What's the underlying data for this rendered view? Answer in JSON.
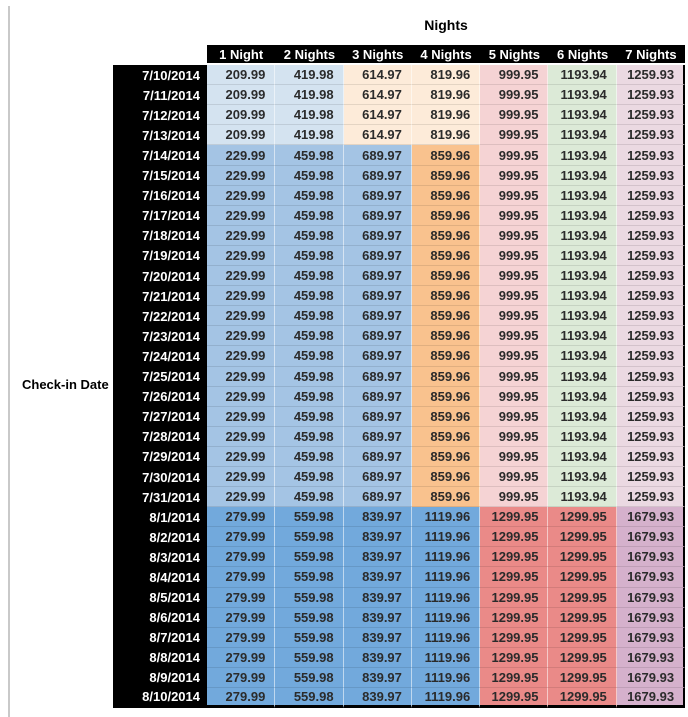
{
  "title": "Nights",
  "row_axis_label": "Check-in Date",
  "columns": [
    "1 Night",
    "2 Nights",
    "3 Nights",
    "4 Nights",
    "5 Nights",
    "6 Nights",
    "7 Nights"
  ],
  "colors": {
    "header_bg": "#000000",
    "header_text": "#ffffff",
    "value_text": "#2b2b2b",
    "left_rule": "#c9c9c9",
    "palettes": {
      "early_july": [
        "#d4e3f0",
        "#d4e3f0",
        "#fdebd9",
        "#fdebd9",
        "#f5d3d4",
        "#dcead7",
        "#ebd9e2"
      ],
      "late_july": [
        "#a4c4e4",
        "#a4c4e4",
        "#a4c4e4",
        "#f9c28e",
        "#f5d3d4",
        "#dcead7",
        "#ebd9e2"
      ],
      "august": [
        "#72a9dc",
        "#72a9dc",
        "#72a9dc",
        "#72a9dc",
        "#ea8a88",
        "#ea8a88",
        "#d5b1cc"
      ]
    }
  },
  "rows": [
    {
      "date": "7/10/2014",
      "palette": "early_july",
      "values": [
        "209.99",
        "419.98",
        "614.97",
        "819.96",
        "999.95",
        "1193.94",
        "1259.93"
      ]
    },
    {
      "date": "7/11/2014",
      "palette": "early_july",
      "values": [
        "209.99",
        "419.98",
        "614.97",
        "819.96",
        "999.95",
        "1193.94",
        "1259.93"
      ]
    },
    {
      "date": "7/12/2014",
      "palette": "early_july",
      "values": [
        "209.99",
        "419.98",
        "614.97",
        "819.96",
        "999.95",
        "1193.94",
        "1259.93"
      ]
    },
    {
      "date": "7/13/2014",
      "palette": "early_july",
      "values": [
        "209.99",
        "419.98",
        "614.97",
        "819.96",
        "999.95",
        "1193.94",
        "1259.93"
      ]
    },
    {
      "date": "7/14/2014",
      "palette": "late_july",
      "values": [
        "229.99",
        "459.98",
        "689.97",
        "859.96",
        "999.95",
        "1193.94",
        "1259.93"
      ]
    },
    {
      "date": "7/15/2014",
      "palette": "late_july",
      "values": [
        "229.99",
        "459.98",
        "689.97",
        "859.96",
        "999.95",
        "1193.94",
        "1259.93"
      ]
    },
    {
      "date": "7/16/2014",
      "palette": "late_july",
      "values": [
        "229.99",
        "459.98",
        "689.97",
        "859.96",
        "999.95",
        "1193.94",
        "1259.93"
      ]
    },
    {
      "date": "7/17/2014",
      "palette": "late_july",
      "values": [
        "229.99",
        "459.98",
        "689.97",
        "859.96",
        "999.95",
        "1193.94",
        "1259.93"
      ]
    },
    {
      "date": "7/18/2014",
      "palette": "late_july",
      "values": [
        "229.99",
        "459.98",
        "689.97",
        "859.96",
        "999.95",
        "1193.94",
        "1259.93"
      ]
    },
    {
      "date": "7/19/2014",
      "palette": "late_july",
      "values": [
        "229.99",
        "459.98",
        "689.97",
        "859.96",
        "999.95",
        "1193.94",
        "1259.93"
      ]
    },
    {
      "date": "7/20/2014",
      "palette": "late_july",
      "values": [
        "229.99",
        "459.98",
        "689.97",
        "859.96",
        "999.95",
        "1193.94",
        "1259.93"
      ]
    },
    {
      "date": "7/21/2014",
      "palette": "late_july",
      "values": [
        "229.99",
        "459.98",
        "689.97",
        "859.96",
        "999.95",
        "1193.94",
        "1259.93"
      ]
    },
    {
      "date": "7/22/2014",
      "palette": "late_july",
      "values": [
        "229.99",
        "459.98",
        "689.97",
        "859.96",
        "999.95",
        "1193.94",
        "1259.93"
      ]
    },
    {
      "date": "7/23/2014",
      "palette": "late_july",
      "values": [
        "229.99",
        "459.98",
        "689.97",
        "859.96",
        "999.95",
        "1193.94",
        "1259.93"
      ]
    },
    {
      "date": "7/24/2014",
      "palette": "late_july",
      "values": [
        "229.99",
        "459.98",
        "689.97",
        "859.96",
        "999.95",
        "1193.94",
        "1259.93"
      ]
    },
    {
      "date": "7/25/2014",
      "palette": "late_july",
      "values": [
        "229.99",
        "459.98",
        "689.97",
        "859.96",
        "999.95",
        "1193.94",
        "1259.93"
      ]
    },
    {
      "date": "7/26/2014",
      "palette": "late_july",
      "values": [
        "229.99",
        "459.98",
        "689.97",
        "859.96",
        "999.95",
        "1193.94",
        "1259.93"
      ]
    },
    {
      "date": "7/27/2014",
      "palette": "late_july",
      "values": [
        "229.99",
        "459.98",
        "689.97",
        "859.96",
        "999.95",
        "1193.94",
        "1259.93"
      ]
    },
    {
      "date": "7/28/2014",
      "palette": "late_july",
      "values": [
        "229.99",
        "459.98",
        "689.97",
        "859.96",
        "999.95",
        "1193.94",
        "1259.93"
      ]
    },
    {
      "date": "7/29/2014",
      "palette": "late_july",
      "values": [
        "229.99",
        "459.98",
        "689.97",
        "859.96",
        "999.95",
        "1193.94",
        "1259.93"
      ]
    },
    {
      "date": "7/30/2014",
      "palette": "late_july",
      "values": [
        "229.99",
        "459.98",
        "689.97",
        "859.96",
        "999.95",
        "1193.94",
        "1259.93"
      ]
    },
    {
      "date": "7/31/2014",
      "palette": "late_july",
      "values": [
        "229.99",
        "459.98",
        "689.97",
        "859.96",
        "999.95",
        "1193.94",
        "1259.93"
      ]
    },
    {
      "date": "8/1/2014",
      "palette": "august",
      "values": [
        "279.99",
        "559.98",
        "839.97",
        "1119.96",
        "1299.95",
        "1299.95",
        "1679.93"
      ]
    },
    {
      "date": "8/2/2014",
      "palette": "august",
      "values": [
        "279.99",
        "559.98",
        "839.97",
        "1119.96",
        "1299.95",
        "1299.95",
        "1679.93"
      ]
    },
    {
      "date": "8/3/2014",
      "palette": "august",
      "values": [
        "279.99",
        "559.98",
        "839.97",
        "1119.96",
        "1299.95",
        "1299.95",
        "1679.93"
      ]
    },
    {
      "date": "8/4/2014",
      "palette": "august",
      "values": [
        "279.99",
        "559.98",
        "839.97",
        "1119.96",
        "1299.95",
        "1299.95",
        "1679.93"
      ]
    },
    {
      "date": "8/5/2014",
      "palette": "august",
      "values": [
        "279.99",
        "559.98",
        "839.97",
        "1119.96",
        "1299.95",
        "1299.95",
        "1679.93"
      ]
    },
    {
      "date": "8/6/2014",
      "palette": "august",
      "values": [
        "279.99",
        "559.98",
        "839.97",
        "1119.96",
        "1299.95",
        "1299.95",
        "1679.93"
      ]
    },
    {
      "date": "8/7/2014",
      "palette": "august",
      "values": [
        "279.99",
        "559.98",
        "839.97",
        "1119.96",
        "1299.95",
        "1299.95",
        "1679.93"
      ]
    },
    {
      "date": "8/8/2014",
      "palette": "august",
      "values": [
        "279.99",
        "559.98",
        "839.97",
        "1119.96",
        "1299.95",
        "1299.95",
        "1679.93"
      ]
    },
    {
      "date": "8/9/2014",
      "palette": "august",
      "values": [
        "279.99",
        "559.98",
        "839.97",
        "1119.96",
        "1299.95",
        "1299.95",
        "1679.93"
      ]
    },
    {
      "date": "8/10/2014",
      "palette": "august",
      "values": [
        "279.99",
        "559.98",
        "839.97",
        "1119.96",
        "1299.95",
        "1299.95",
        "1679.93"
      ]
    }
  ]
}
